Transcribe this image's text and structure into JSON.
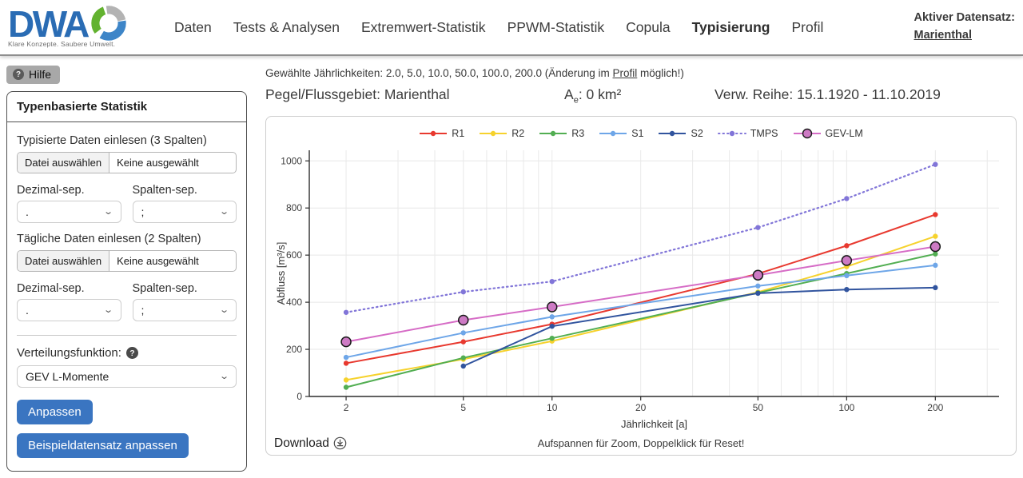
{
  "header": {
    "logo": {
      "text": "DWA",
      "tagline": "Klare Konzepte. Saubere Umwelt.",
      "brand_blue": "#2a6cb4",
      "ring_colors": {
        "blue": "#3d85c8",
        "green": "#62b22f",
        "gray": "#b3b3b3"
      }
    },
    "nav": [
      {
        "label": "Daten"
      },
      {
        "label": "Tests & Analysen"
      },
      {
        "label": "Extremwert-Statistik"
      },
      {
        "label": "PPWM-Statistik"
      },
      {
        "label": "Copula"
      },
      {
        "label": "Typisierung",
        "active": true
      },
      {
        "label": "Profil"
      }
    ],
    "active_dataset_label": "Aktiver Datensatz:",
    "active_dataset_value": "Marienthal"
  },
  "sidebar": {
    "help_button": "Hilfe",
    "help_icon": "?",
    "panel_title": "Typenbasierte Statistik",
    "typed_data": {
      "label": "Typisierte Daten einlesen (3 Spalten)",
      "file_button": "Datei auswählen",
      "file_status": "Keine ausgewählt",
      "decimal_sep_label": "Dezimal-sep.",
      "decimal_sep_value": ".",
      "column_sep_label": "Spalten-sep.",
      "column_sep_value": ";"
    },
    "daily_data": {
      "label": "Tägliche Daten einlesen (2 Spalten)",
      "file_button": "Datei auswählen",
      "file_status": "Keine ausgewählt",
      "decimal_sep_label": "Dezimal-sep.",
      "decimal_sep_value": ".",
      "column_sep_label": "Spalten-sep.",
      "column_sep_value": ";"
    },
    "distribution": {
      "label": "Verteilungsfunktion:",
      "help_icon": "?",
      "value": "GEV L-Momente"
    },
    "fit_button": "Anpassen",
    "example_button": "Beispieldatensatz anpassen",
    "accent_color": "#3a75c1"
  },
  "main": {
    "jaehrlichkeiten": {
      "prefix": "Gewählte Jährlichkeiten: 2.0, 5.0, 10.0, 50.0, 100.0, 200.0 (Änderung im ",
      "link": "Profil",
      "suffix": " möglich!)"
    },
    "gauge_label": "Pegel/Flussgebiet: Marienthal",
    "area": {
      "base": "A",
      "sub": "e",
      "rest": ": 0 km²"
    },
    "series_label": "Verw. Reihe: 15.1.1920 - 11.10.2019",
    "download_label": "Download",
    "zoom_hint": "Aufspannen für Zoom, Doppelklick für Reset!"
  },
  "chart_data": {
    "type": "line",
    "xlabel": "Jährlichkeit [a]",
    "ylabel": "Abfluss [m³/s]",
    "x_scale": "log",
    "xlim": [
      1.5,
      329
    ],
    "ylim": [
      0,
      1045
    ],
    "x": [
      2,
      5,
      10,
      50,
      100,
      200
    ],
    "x_ticks": [
      2,
      5,
      10,
      20,
      50,
      100,
      200
    ],
    "y_ticks": [
      0,
      200,
      400,
      600,
      800,
      1000
    ],
    "grid": true,
    "legend_position": "top",
    "series": [
      {
        "name": "R1",
        "color": "#e8392f",
        "style": "solid",
        "marker": "dot",
        "values": [
          141,
          232,
          307,
          521,
          640,
          772
        ]
      },
      {
        "name": "R2",
        "color": "#f6d22d",
        "style": "solid",
        "marker": "dot",
        "values": [
          70,
          158,
          235,
          443,
          551,
          680
        ]
      },
      {
        "name": "R3",
        "color": "#52ae52",
        "style": "solid",
        "marker": "dot",
        "values": [
          39,
          164,
          247,
          440,
          522,
          605
        ]
      },
      {
        "name": "S1",
        "color": "#6ea6e8",
        "style": "solid",
        "marker": "dot",
        "values": [
          166,
          270,
          338,
          469,
          513,
          557
        ]
      },
      {
        "name": "S2",
        "color": "#31549e",
        "style": "solid",
        "marker": "dot",
        "values": [
          null,
          129,
          298,
          438,
          454,
          462
        ]
      },
      {
        "name": "TMPS",
        "color": "#8175d8",
        "style": "dotted",
        "marker": "dot",
        "values": [
          357,
          444,
          488,
          717,
          840,
          985
        ]
      },
      {
        "name": "GEV-LM",
        "color": "#d66cc6",
        "style": "solid",
        "marker": "big-circle",
        "marker_fill": "#cd7ac4",
        "marker_edge": "#1a1a1a",
        "values": [
          232,
          324,
          380,
          515,
          577,
          636
        ]
      }
    ]
  }
}
